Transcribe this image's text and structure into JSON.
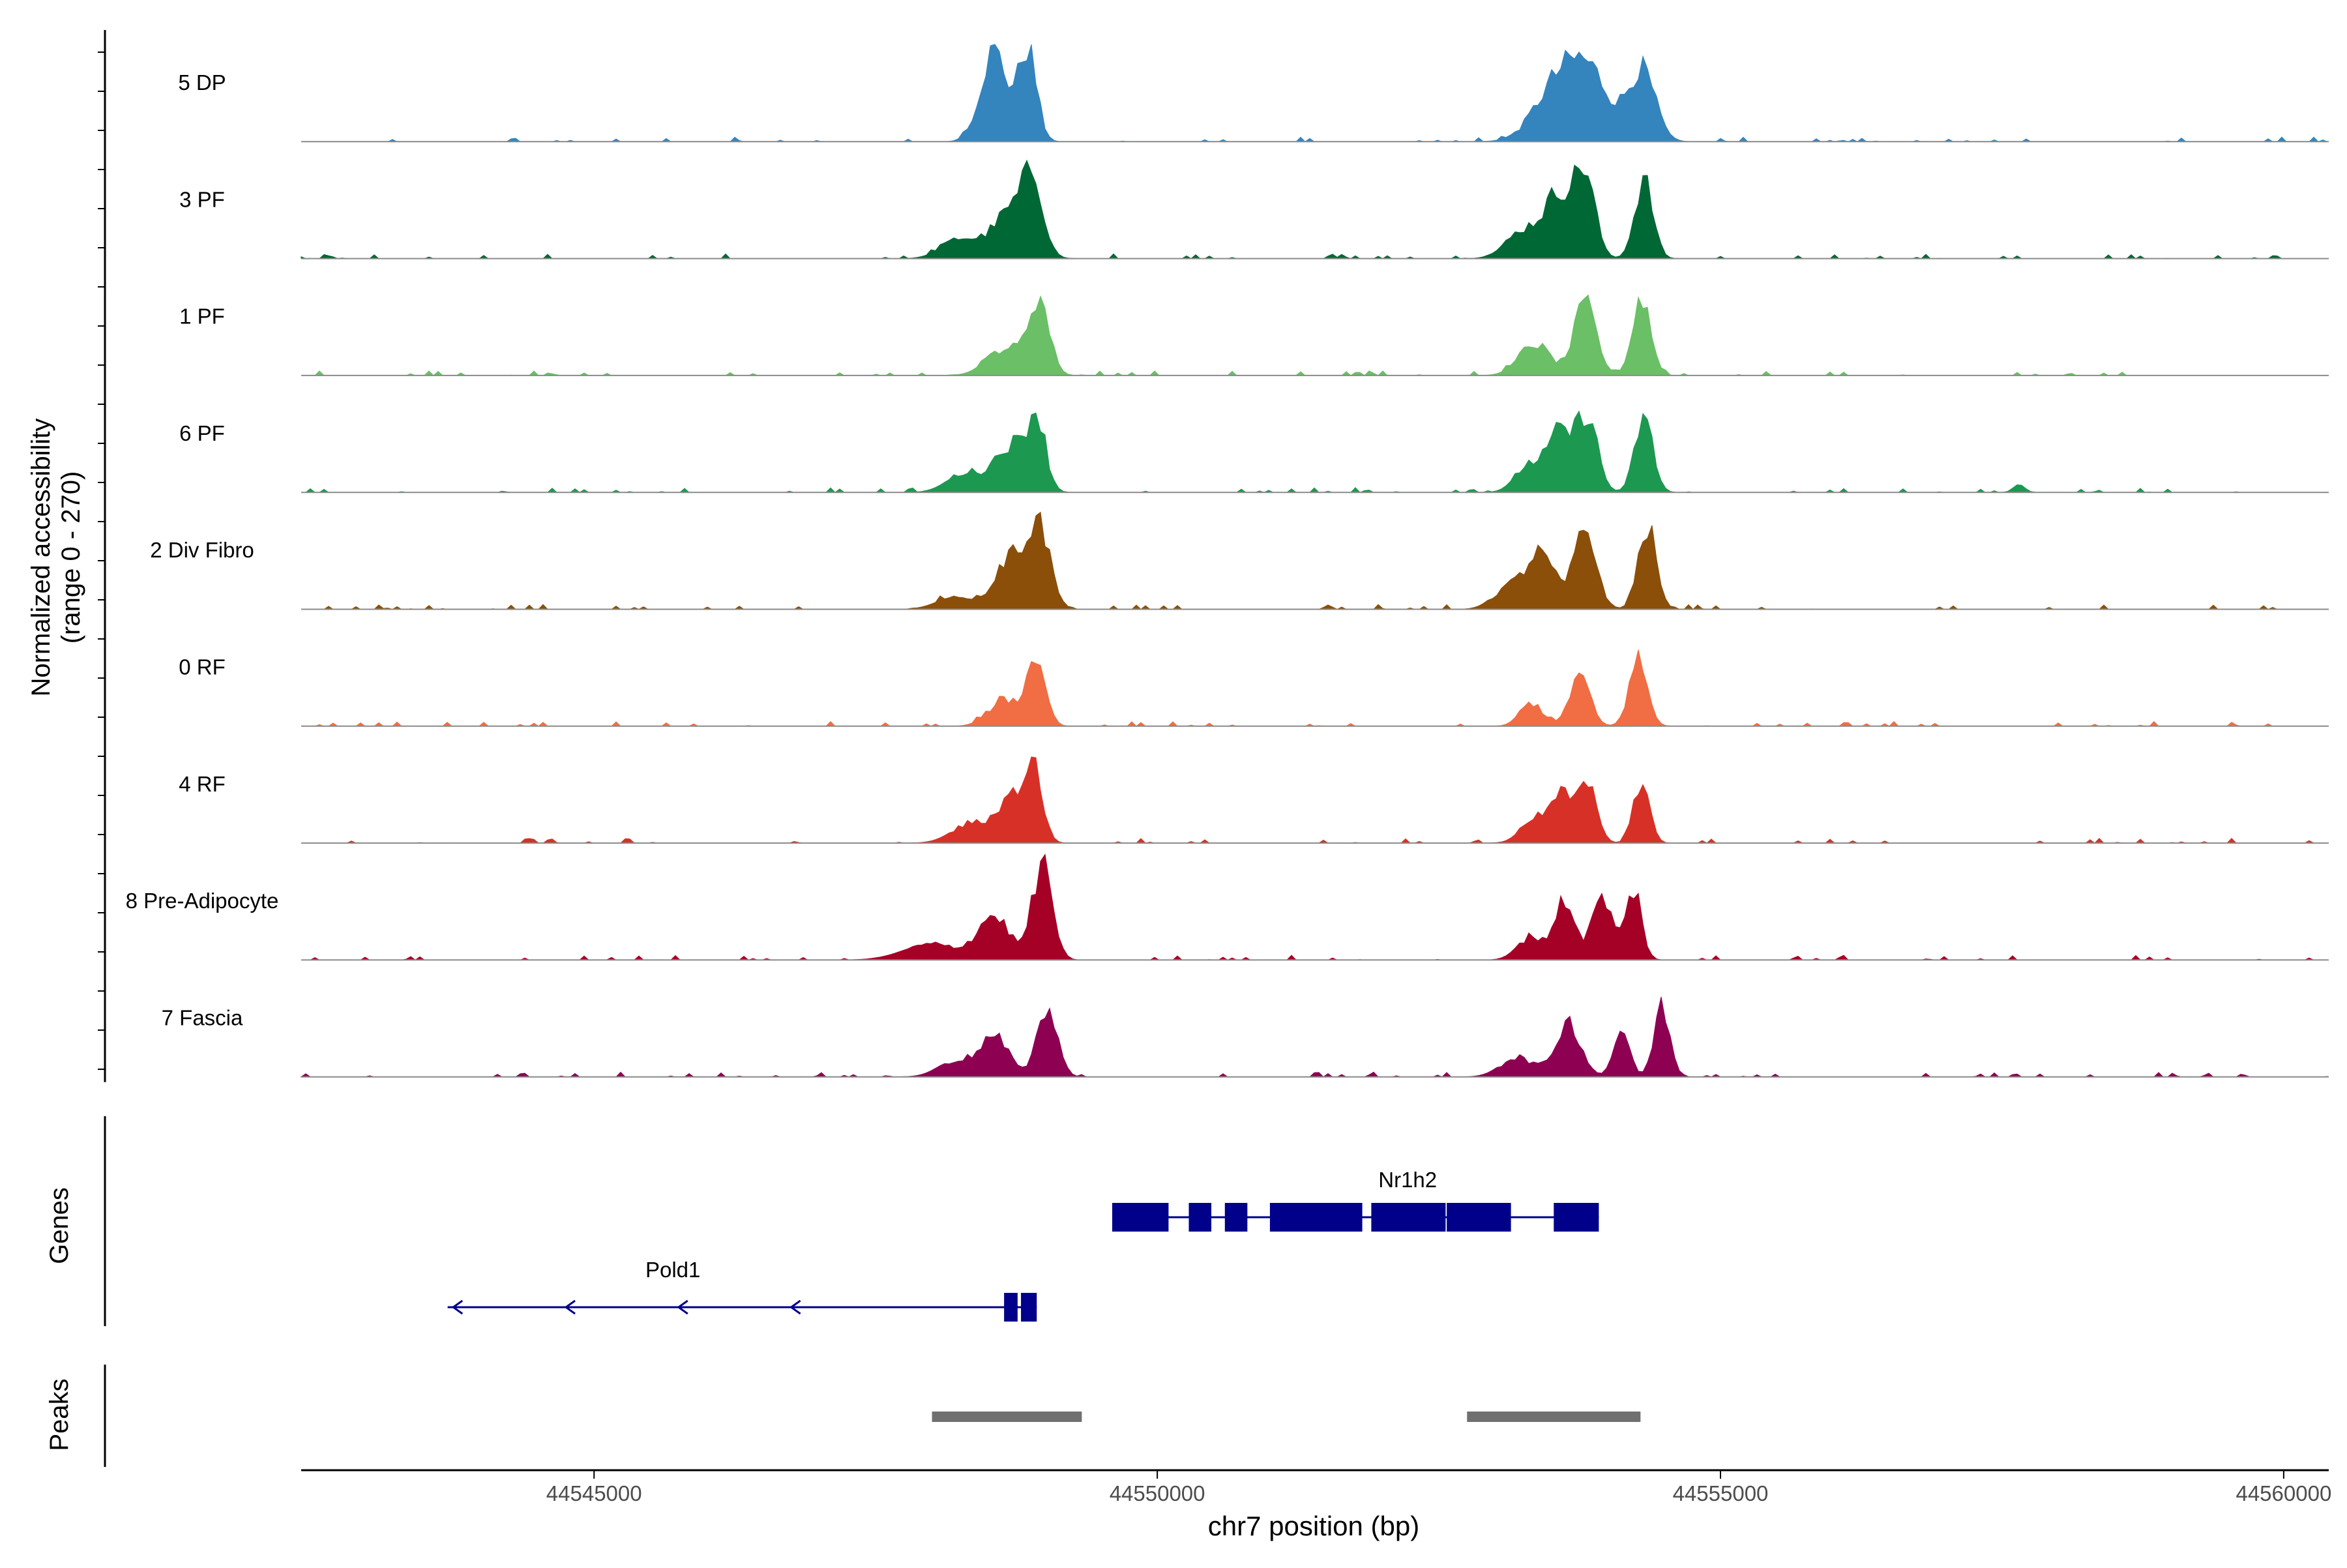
{
  "chart_data": {
    "type": "area",
    "region": "chr7",
    "xlabel": "chr7 position (bp)",
    "xlim": [
      44542400,
      44560400
    ],
    "xticks": [
      {
        "value": 44545000,
        "label": "44545000"
      },
      {
        "value": 44550000,
        "label": "44550000"
      },
      {
        "value": 44555000,
        "label": "44555000"
      },
      {
        "value": 44560000,
        "label": "44560000"
      }
    ],
    "ylabel_line1": "Normalized accessibility",
    "ylabel_line2": "(range 0 - 270)",
    "ylim": [
      0,
      270
    ],
    "genes_label": "Genes",
    "peaks_label": "Peaks",
    "series": [
      {
        "name": "5 DP",
        "color": "#3484BE",
        "peaks": [
          [
            44548550,
            120,
            230
          ],
          [
            44548850,
            80,
            230
          ],
          [
            44553550,
            200,
            140
          ],
          [
            44553850,
            180,
            150
          ],
          [
            44554300,
            120,
            180
          ]
        ]
      },
      {
        "name": "3 PF",
        "color": "#006835",
        "peaks": [
          [
            44548250,
            160,
            50
          ],
          [
            44548700,
            160,
            120
          ],
          [
            44548900,
            90,
            170
          ],
          [
            44553250,
            150,
            70
          ],
          [
            44553570,
            130,
            160
          ],
          [
            44553800,
            90,
            200
          ],
          [
            44554320,
            80,
            200
          ]
        ]
      },
      {
        "name": "1 PF",
        "color": "#6BBF66",
        "peaks": [
          [
            44548650,
            160,
            70
          ],
          [
            44548950,
            90,
            190
          ],
          [
            44553350,
            140,
            80
          ],
          [
            44553800,
            100,
            180
          ],
          [
            44554300,
            80,
            200
          ]
        ]
      },
      {
        "name": "6 PF",
        "color": "#1D9850",
        "peaks": [
          [
            44548300,
            160,
            50
          ],
          [
            44548700,
            140,
            120
          ],
          [
            44548930,
            80,
            180
          ],
          [
            44553300,
            120,
            70
          ],
          [
            44553580,
            110,
            150
          ],
          [
            44553820,
            90,
            190
          ],
          [
            44554320,
            80,
            190
          ],
          [
            44557650,
            50,
            20
          ]
        ]
      },
      {
        "name": "2 Div Fibro",
        "color": "#8B4F0A",
        "peaks": [
          [
            44548200,
            160,
            30
          ],
          [
            44548700,
            140,
            130
          ],
          [
            44548950,
            100,
            200
          ],
          [
            44553100,
            130,
            50
          ],
          [
            44553400,
            130,
            140
          ],
          [
            44553800,
            100,
            200
          ],
          [
            44554350,
            80,
            210
          ]
        ]
      },
      {
        "name": "0 RF",
        "color": "#F16D43",
        "peaks": [
          [
            44548650,
            140,
            70
          ],
          [
            44548930,
            80,
            170
          ],
          [
            44553320,
            100,
            60
          ],
          [
            44553750,
            90,
            130
          ],
          [
            44554270,
            80,
            170
          ]
        ]
      },
      {
        "name": "4 RF",
        "color": "#D73127",
        "peaks": [
          [
            44548350,
            170,
            50
          ],
          [
            44548700,
            120,
            110
          ],
          [
            44548900,
            80,
            180
          ],
          [
            44553350,
            120,
            60
          ],
          [
            44553600,
            100,
            140
          ],
          [
            44553830,
            80,
            130
          ],
          [
            44554300,
            70,
            160
          ]
        ]
      },
      {
        "name": "8 Pre-Adipocyte",
        "color": "#A50026",
        "peaks": [
          [
            44548000,
            250,
            40
          ],
          [
            44548550,
            140,
            110
          ],
          [
            44548980,
            90,
            240
          ],
          [
            44553320,
            120,
            60
          ],
          [
            44553620,
            90,
            150
          ],
          [
            44553950,
            90,
            160
          ],
          [
            44554230,
            70,
            180
          ]
        ]
      },
      {
        "name": "7 Fascia",
        "color": "#8E0152",
        "peaks": [
          [
            44548200,
            150,
            40
          ],
          [
            44548550,
            130,
            100
          ],
          [
            44549020,
            90,
            170
          ],
          [
            44553200,
            150,
            50
          ],
          [
            44553650,
            110,
            140
          ],
          [
            44554120,
            70,
            120
          ],
          [
            44554480,
            70,
            180
          ]
        ]
      }
    ],
    "genes": [
      {
        "name": "Nr1h2",
        "strand": "+",
        "start": 44549600,
        "end": 44553920,
        "exons": [
          [
            44549600,
            44550100
          ],
          [
            44550280,
            44550480
          ],
          [
            44550600,
            44550800
          ],
          [
            44551000,
            44551820
          ],
          [
            44551900,
            44552560
          ],
          [
            44552570,
            44553140
          ],
          [
            44553520,
            44553920
          ]
        ]
      },
      {
        "name": "Pold1",
        "strand": "-",
        "start": 44543700,
        "end": 44548930,
        "exons": [
          [
            44548640,
            44548760
          ],
          [
            44548790,
            44548930
          ]
        ],
        "arrows": [
          44543750,
          44544750,
          44545750,
          44546750
        ]
      }
    ],
    "peaks": [
      {
        "start": 44548000,
        "end": 44549330
      },
      {
        "start": 44552750,
        "end": 44554290
      }
    ]
  }
}
